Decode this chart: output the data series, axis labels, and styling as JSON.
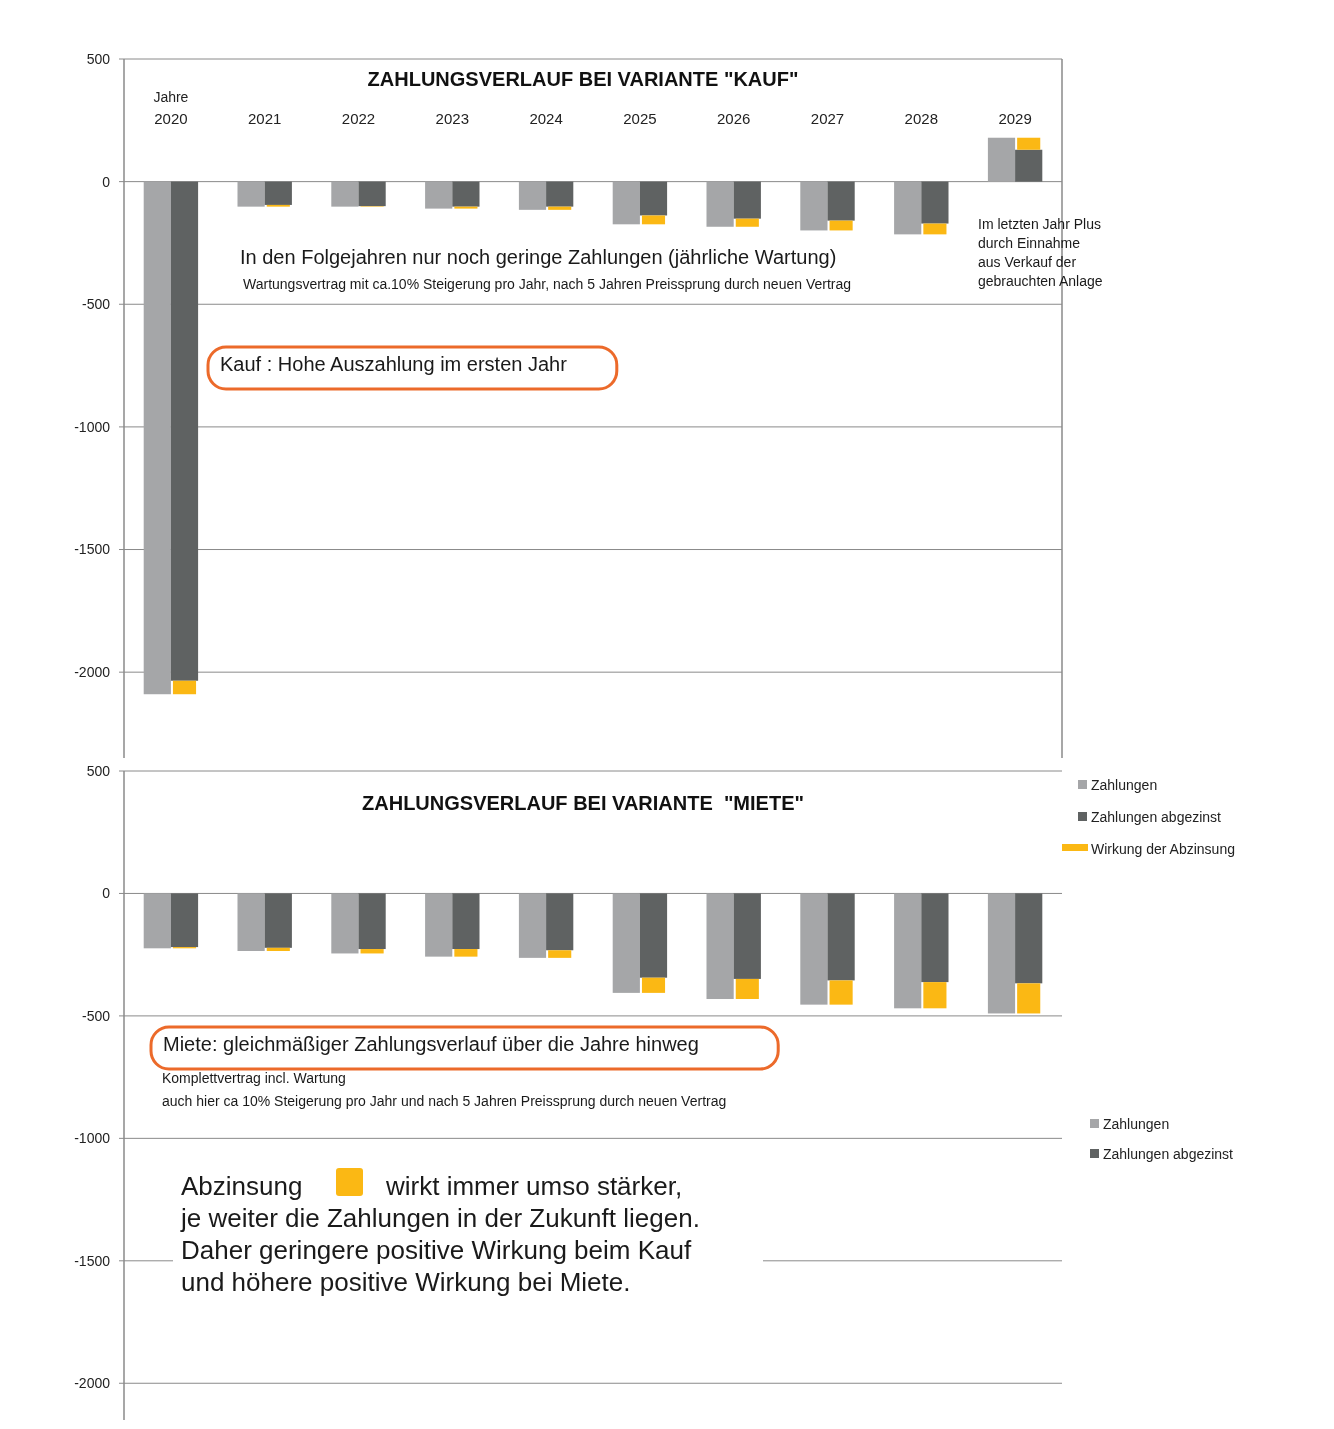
{
  "chart_data": [
    {
      "type": "bar",
      "title": "ZAHLUNGSVERLAUF BEI VARIANTE \"KAUF\"",
      "xlabel": "Jahre",
      "categories": [
        "2020",
        "2021",
        "2022",
        "2023",
        "2024",
        "2025",
        "2026",
        "2027",
        "2028",
        "2029"
      ],
      "series": [
        {
          "name": "Zahlungen",
          "color": "#a5a6a8",
          "values": [
            -2090,
            -102,
            -102,
            -110,
            -115,
            -174,
            -184,
            -199,
            -215,
            179
          ]
        },
        {
          "name": "Zahlungen abgezinst",
          "color": "#5f6262",
          "values": [
            -2035,
            -95,
            -100,
            -102,
            -102,
            -138,
            -151,
            -159,
            -171,
            130
          ]
        },
        {
          "name": "Wirkung der Abzinsung",
          "color": "#fbb814",
          "base": [
            -2035,
            -95,
            -100,
            -102,
            -102,
            -138,
            -151,
            -159,
            -171,
            130
          ],
          "values": [
            -55,
            -7,
            -2,
            -8,
            -13,
            -36,
            -33,
            -40,
            -44,
            49
          ]
        }
      ],
      "ylim": [
        -2350,
        500
      ],
      "yticks": [
        500,
        0,
        -500,
        -1000,
        -1500,
        -2000
      ],
      "grid": "y",
      "legend": "bottom right",
      "annotations": [
        "In den Folgejahren  nur noch geringe Zahlungen (jährliche Wartung)",
        "Wartungsvertrag mit ca.10% Steigerung pro Jahr, nach 5 Jahren Preissprung durch neuen Vertrag",
        "Im letzten Jahr Plus\ndurch Einnahme\naus Verkauf der\ngebrauchten Anlage",
        "Kauf : Hohe Auszahlung im ersten Jahr"
      ]
    },
    {
      "type": "bar",
      "title": "ZAHLUNGSVERLAUF BEI VARIANTE  \"MIETE\"",
      "categories": [
        null,
        null,
        null,
        null,
        null,
        null,
        null,
        null,
        null,
        null
      ],
      "series": [
        {
          "name": "Zahlungen",
          "color": "#a5a6a8",
          "values": [
            -224,
            -235,
            -245,
            -258,
            -263,
            -406,
            -431,
            -454,
            -469,
            -490
          ]
        },
        {
          "name": "Zahlungen abgezinst",
          "color": "#5f6262",
          "values": [
            -219,
            -222,
            -227,
            -227,
            -232,
            -344,
            -349,
            -355,
            -362,
            -367
          ]
        },
        {
          "color": "#fbb814",
          "base": [
            -219,
            -222,
            -227,
            -227,
            -232,
            -344,
            -349,
            -355,
            -362,
            -367
          ],
          "values": [
            -5,
            -13,
            -18,
            -31,
            -31,
            -62,
            -82,
            -99,
            -107,
            -123
          ]
        }
      ],
      "ylim": [
        -2150,
        500
      ],
      "yticks": [
        500,
        0,
        -500,
        -1000,
        -1500,
        -2000
      ],
      "grid": "y",
      "legend": "right",
      "annotations": [
        "Miete: gleichmäßiger Zahlungsverlauf über die Jahre hinweg",
        "Komplettvertrag incl. Wartung",
        "auch hier ca 10% Steigerung pro Jahr und nach 5 Jahren Preissprung durch neuen Vertrag",
        "Abzinsung",
        "wirkt immer umso stärker,\nje weiter die Zahlungen in der Zukunft liegen.\nDaher geringere positive Wirkung beim Kauf\nund höhere positive Wirkung bei Miete."
      ]
    }
  ]
}
